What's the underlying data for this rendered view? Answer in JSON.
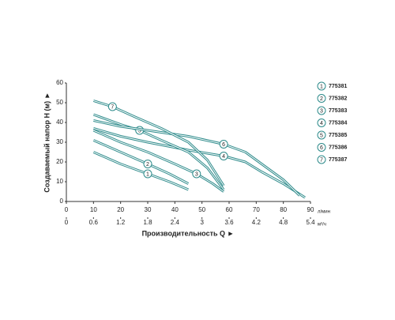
{
  "chart_data": {
    "type": "line",
    "ylabel": "Создаваемый напор H (м) ►",
    "xlabel": "Производительность Q ►",
    "xunit": "л/мин",
    "x2unit": "м³/ч",
    "xlim": [
      0,
      90
    ],
    "xticks": [
      0,
      10,
      20,
      30,
      40,
      50,
      60,
      70,
      80,
      90
    ],
    "x2lim": [
      0,
      5.4
    ],
    "x2ticks": [
      0,
      0.6,
      1.2,
      1.8,
      2.4,
      3.0,
      3.6,
      4.2,
      4.8,
      5.4
    ],
    "ylim": [
      0,
      60
    ],
    "yticks": [
      0,
      10,
      20,
      30,
      40,
      50,
      60
    ],
    "color": "#2e8b8b",
    "series": [
      {
        "name": "775381",
        "label": "1",
        "x": [
          10,
          20,
          30,
          38,
          45
        ],
        "values": [
          25,
          19,
          14,
          10,
          6
        ]
      },
      {
        "name": "775382",
        "label": "2",
        "x": [
          10,
          20,
          30,
          38,
          45
        ],
        "values": [
          31,
          25,
          19,
          14,
          9
        ]
      },
      {
        "name": "775383",
        "label": "3",
        "x": [
          10,
          20,
          30,
          40,
          48,
          54,
          58
        ],
        "values": [
          36,
          30,
          25,
          19,
          14,
          9,
          5
        ]
      },
      {
        "name": "775384",
        "label": "4",
        "x": [
          10,
          20,
          30,
          45,
          58,
          66,
          72,
          80,
          88
        ],
        "values": [
          37,
          33,
          30,
          26,
          23,
          20,
          15,
          9,
          2
        ]
      },
      {
        "name": "775385",
        "label": "5",
        "x": [
          10,
          20,
          27,
          35,
          45,
          52,
          58
        ],
        "values": [
          44,
          39,
          36,
          31,
          25,
          17,
          6
        ]
      },
      {
        "name": "775386",
        "label": "6",
        "x": [
          10,
          20,
          30,
          45,
          58,
          66,
          72,
          80,
          86
        ],
        "values": [
          41,
          38,
          36,
          33,
          29,
          25,
          19,
          11,
          3
        ]
      },
      {
        "name": "775387",
        "label": "7",
        "x": [
          10,
          17,
          25,
          35,
          45,
          52,
          58
        ],
        "values": [
          51,
          48,
          43,
          37,
          30,
          21,
          8
        ]
      }
    ]
  }
}
